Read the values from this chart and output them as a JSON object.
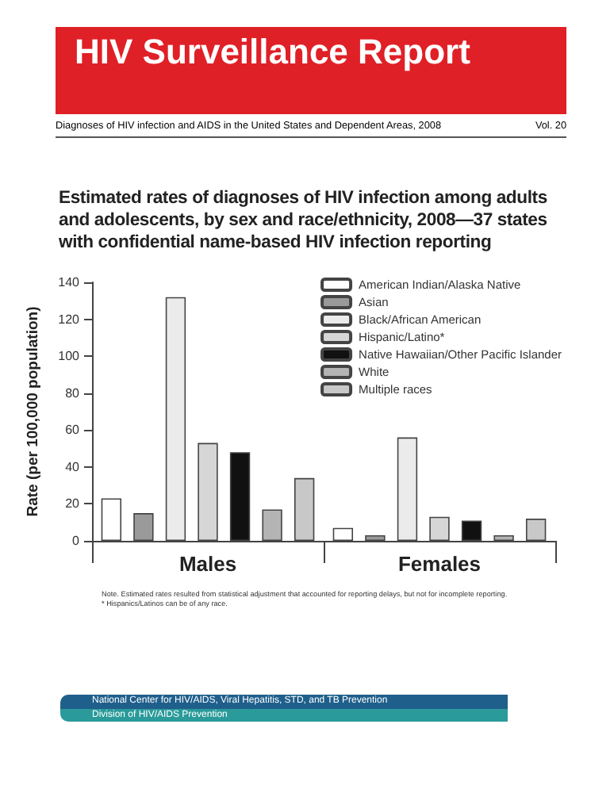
{
  "chart_data": {
    "type": "bar",
    "title": "Estimated rates of diagnoses of HIV infection among adults and adolescents, by sex and race/ethnicity, 2008—37 states with confidential name-based HIV infection reporting",
    "ylabel": "Rate (per 100,000 population)",
    "categories": [
      "Males",
      "Females"
    ],
    "series": [
      {
        "name": "American Indian/Alaska Native",
        "color": "#ffffff",
        "values": [
          23,
          7
        ]
      },
      {
        "name": "Asian",
        "color": "#9a9a9a",
        "values": [
          15,
          3
        ]
      },
      {
        "name": "Black/African American",
        "color": "#ebebeb",
        "values": [
          132,
          56
        ]
      },
      {
        "name": "Hispanic/Latino*",
        "color": "#d6d6d6",
        "values": [
          53,
          13
        ]
      },
      {
        "name": "Native Hawaiian/Other Pacific Islander",
        "color": "#111111",
        "values": [
          48,
          11
        ]
      },
      {
        "name": "White",
        "color": "#b4b4b4",
        "values": [
          17,
          3
        ]
      },
      {
        "name": "Multiple races",
        "color": "#c8c8c8",
        "values": [
          34,
          12
        ]
      }
    ],
    "ylim": [
      0,
      140
    ],
    "yticks": [
      0,
      20,
      40,
      60,
      80,
      100,
      120,
      140
    ],
    "legend": "top right",
    "grid": false,
    "annotations": [
      "HIV Surveillance Report",
      "Diagnoses of HIV infection and AIDS in the United States and Dependent Areas, 2008",
      "Vol. 20",
      "Note. Estimated rates resulted from statistical adjustment that accounted for reporting delays, but not for incomplete reporting.",
      "* Hispanics/Latinos can be of any race.",
      "National Center for HIV/AIDS, Viral Hepatitis, STD, and TB Prevention",
      "Division of HIV/AIDS Prevention"
    ]
  }
}
